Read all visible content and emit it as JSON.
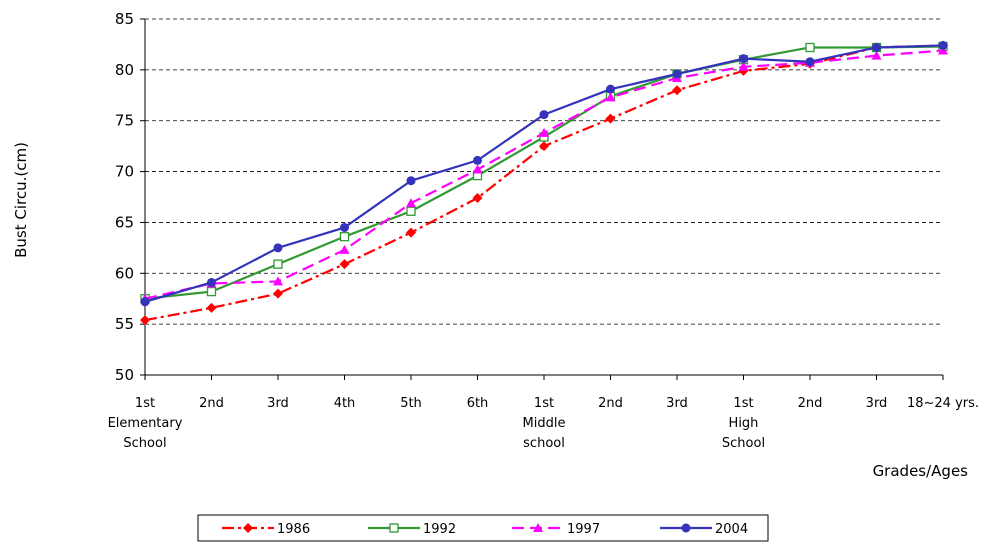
{
  "chart_data": {
    "type": "line",
    "title": "",
    "ylabel": "Bust Circu.(cm)",
    "xlabel": "Grades/Ages",
    "ylim": [
      50,
      85
    ],
    "yticks": [
      50,
      55,
      60,
      65,
      70,
      75,
      80,
      85
    ],
    "grid": "horizontal dashed",
    "legend_position": "bottom",
    "categories": [
      {
        "lines": [
          "1st",
          "Elementary",
          "School"
        ]
      },
      {
        "lines": [
          "2nd"
        ]
      },
      {
        "lines": [
          "3rd"
        ]
      },
      {
        "lines": [
          "4th"
        ]
      },
      {
        "lines": [
          "5th"
        ]
      },
      {
        "lines": [
          "6th"
        ]
      },
      {
        "lines": [
          "1st",
          "Middle",
          "school"
        ]
      },
      {
        "lines": [
          "2nd"
        ]
      },
      {
        "lines": [
          "3rd"
        ]
      },
      {
        "lines": [
          "1st",
          "High",
          "School"
        ]
      },
      {
        "lines": [
          "2nd"
        ]
      },
      {
        "lines": [
          "3rd"
        ]
      },
      {
        "lines": [
          "18~24 yrs."
        ]
      }
    ],
    "series": [
      {
        "name": "1986",
        "color": "#ff0000",
        "marker": "diamond",
        "dash": "dashdot",
        "values": [
          55.4,
          56.6,
          58.0,
          60.9,
          64.0,
          67.4,
          72.5,
          75.2,
          78.0,
          79.9,
          80.6,
          82.2,
          82.4
        ]
      },
      {
        "name": "1992",
        "color": "#339933",
        "marker": "square-open",
        "dash": "solid",
        "values": [
          57.5,
          58.2,
          60.9,
          63.6,
          66.1,
          69.6,
          73.4,
          77.4,
          79.6,
          81.0,
          82.2,
          82.2,
          82.3
        ]
      },
      {
        "name": "1997",
        "color": "#ff00ff",
        "marker": "triangle",
        "dash": "dash",
        "values": [
          57.5,
          59.0,
          59.2,
          62.3,
          66.9,
          70.2,
          73.8,
          77.3,
          79.2,
          80.3,
          80.7,
          81.4,
          81.9
        ]
      },
      {
        "name": "2004",
        "color": "#3333bb",
        "marker": "circle",
        "dash": "solid",
        "values": [
          57.2,
          59.1,
          62.5,
          64.5,
          69.1,
          71.1,
          75.6,
          78.1,
          79.6,
          81.1,
          80.8,
          82.2,
          82.4
        ]
      }
    ]
  }
}
